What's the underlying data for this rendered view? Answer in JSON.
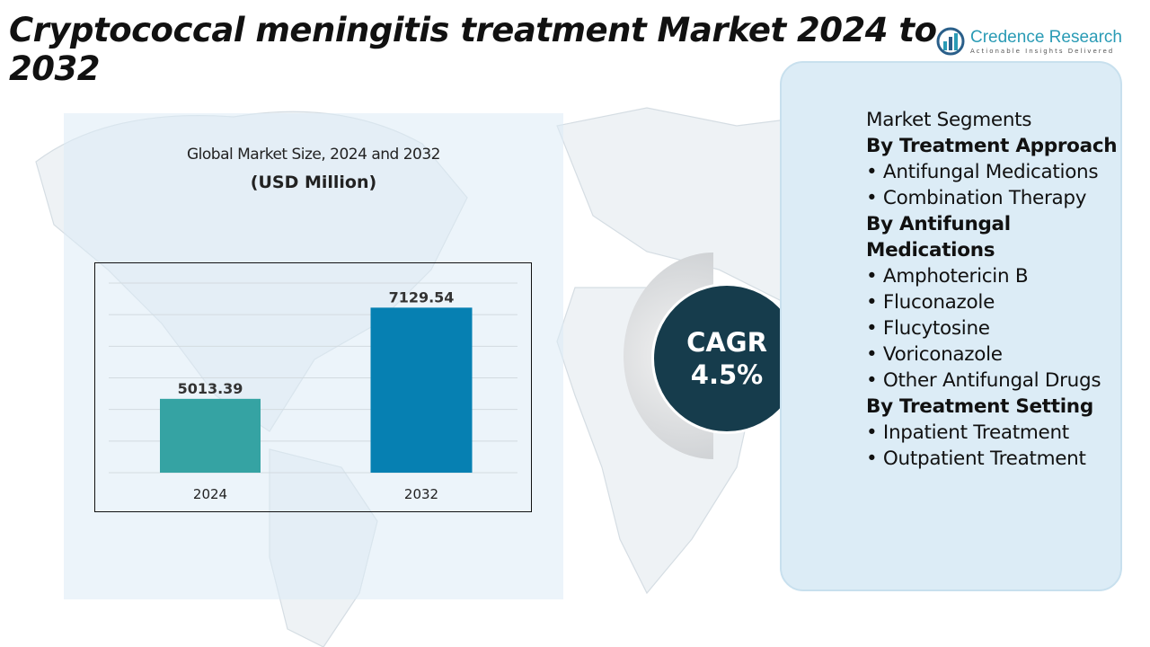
{
  "title": "Cryptococcal meningitis treatment Market 2024 to 2032",
  "logo": {
    "name": "Credence Research",
    "tagline": "Actionable Insights Delivered"
  },
  "chart_header": {
    "subtitle": "Global Market Size, 2024 and 2032",
    "unit": "(USD Million)"
  },
  "chart_data": {
    "type": "bar",
    "categories": [
      "2024",
      "2032"
    ],
    "values": [
      5013.39,
      7129.54
    ],
    "value_labels": [
      "5013.39",
      "7129.54"
    ],
    "title": "Global Market Size, 2024 and 2032",
    "ylabel": "(USD Million)",
    "xlabel": "",
    "ylim": [
      3300,
      7700
    ],
    "grid": true,
    "colors": [
      "#35a3a3",
      "#0680b2"
    ]
  },
  "cagr": {
    "label": "CAGR",
    "value": "4.5%"
  },
  "segments": [
    {
      "text": "Market Segments",
      "heading": false
    },
    {
      "text": "By Treatment Approach",
      "heading": true
    },
    {
      "text": "•  Antifungal Medications",
      "heading": false
    },
    {
      "text": "•   Combination Therapy",
      "heading": false
    },
    {
      "text": "By Antifungal Medications",
      "heading": true
    },
    {
      "text": "•  Amphotericin B",
      "heading": false
    },
    {
      "text": "•  Fluconazole",
      "heading": false
    },
    {
      "text": "•  Flucytosine",
      "heading": false
    },
    {
      "text": "•   Voriconazole",
      "heading": false
    },
    {
      "text": "•  Other Antifungal Drugs",
      "heading": false
    },
    {
      "text": "By Treatment Setting",
      "heading": true
    },
    {
      "text": "•  Inpatient Treatment",
      "heading": false
    },
    {
      "text": "•  Outpatient Treatment",
      "heading": false
    }
  ]
}
